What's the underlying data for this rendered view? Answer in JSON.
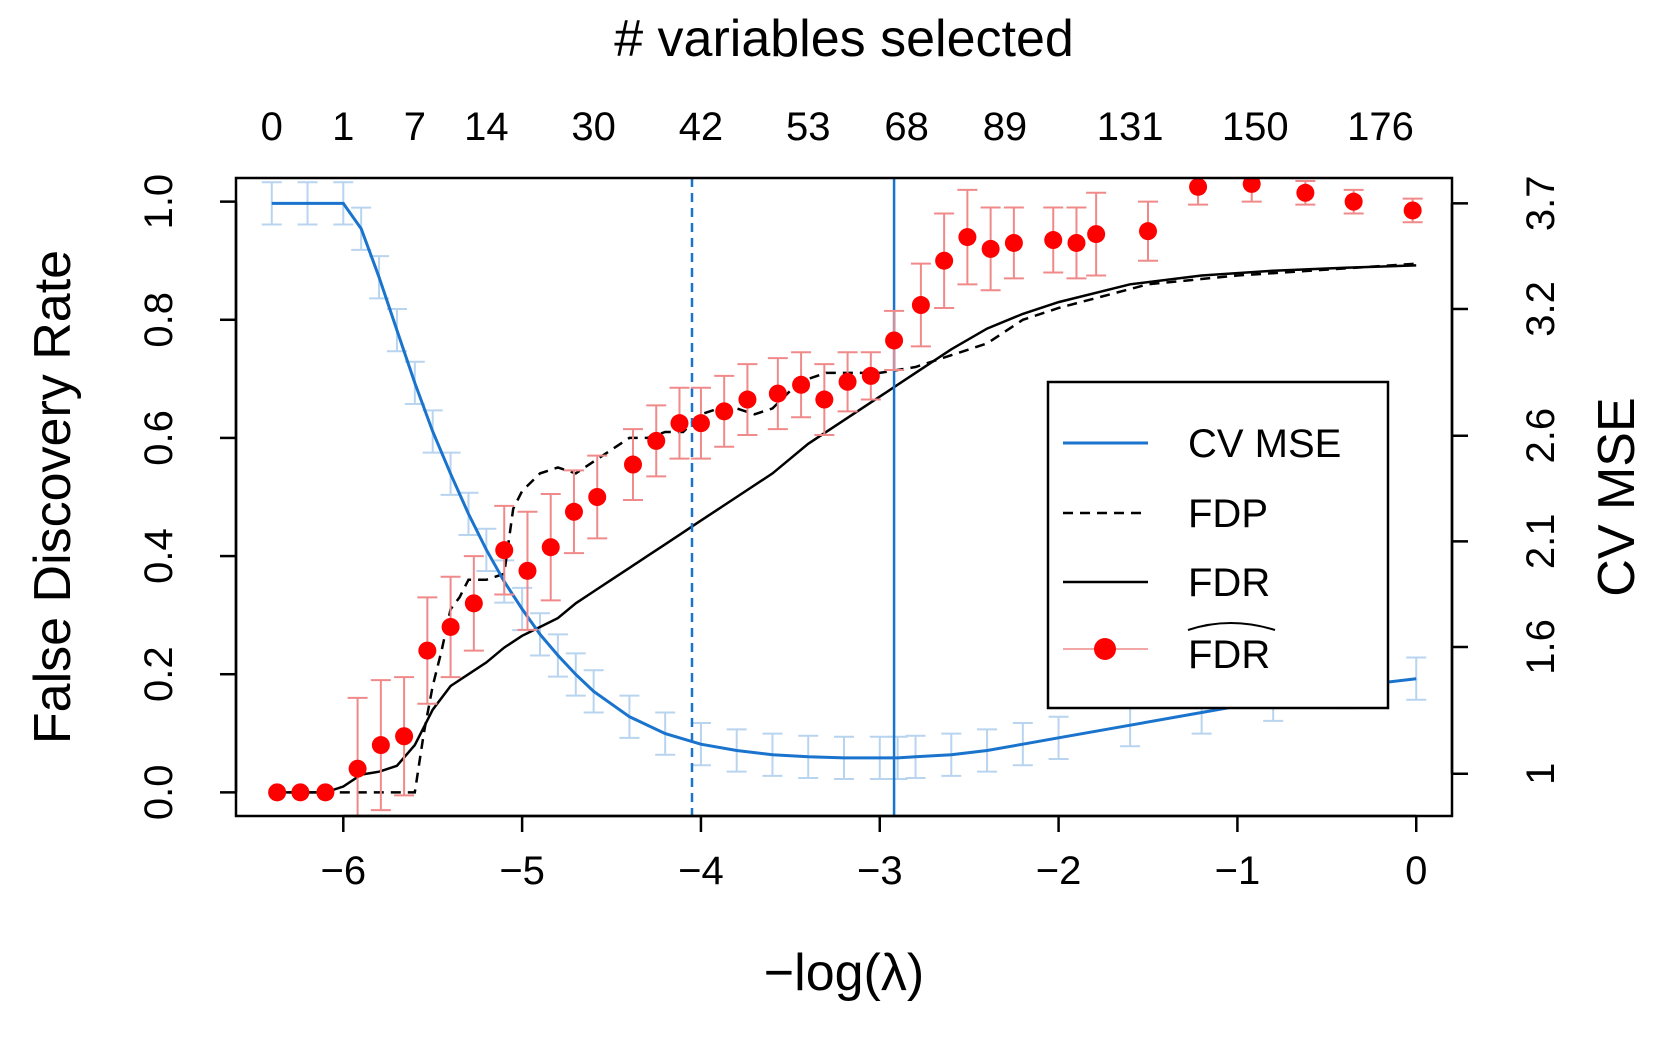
{
  "chart_data": {
    "type": "line",
    "title": "# variables selected",
    "xlabel": "−log(λ)",
    "ylabel": "False Discovery Rate",
    "y2label": "CV MSE",
    "xlim": [
      -6.6,
      0.2
    ],
    "ylim": [
      -0.04,
      1.04
    ],
    "y2lim": [
      0.8,
      3.82
    ],
    "x_ticks": [
      -6,
      -5,
      -4,
      -3,
      -2,
      -1,
      0
    ],
    "x_tick_labels": [
      "−6",
      "−5",
      "−4",
      "−3",
      "−2",
      "−1",
      "0"
    ],
    "y_ticks": [
      0.0,
      0.2,
      0.4,
      0.6,
      0.8,
      1.0
    ],
    "y_tick_labels": [
      "0.0",
      "0.2",
      "0.4",
      "0.6",
      "0.8",
      "1.0"
    ],
    "y2_ticks": [
      1.0,
      1.6,
      2.1,
      2.6,
      3.2,
      3.7
    ],
    "y2_tick_labels": [
      "1",
      "1.6",
      "2.1",
      "2.6",
      "3.2",
      "3.7"
    ],
    "top_ticks": [
      -6.4,
      -6.0,
      -5.6,
      -5.2,
      -4.6,
      -4.0,
      -3.4,
      -2.85,
      -2.3,
      -1.6,
      -0.9,
      -0.2
    ],
    "top_tick_labels": [
      "0",
      "1",
      "7",
      "14",
      "30",
      "42",
      "53",
      "68",
      "89",
      "131",
      "150",
      "176"
    ],
    "vlines": [
      {
        "x": -4.05,
        "style": "dashed",
        "color": "#1a73cc"
      },
      {
        "x": -2.92,
        "style": "solid",
        "color": "#1a73cc"
      }
    ],
    "grid": false,
    "legend_position": "right",
    "series": [
      {
        "name": "CV MSE",
        "color": "#1a73cc",
        "axis": "right",
        "x": [
          -6.4,
          -6.2,
          -6.0,
          -5.9,
          -5.8,
          -5.7,
          -5.6,
          -5.5,
          -5.4,
          -5.3,
          -5.2,
          -5.1,
          -5.0,
          -4.9,
          -4.8,
          -4.7,
          -4.6,
          -4.4,
          -4.2,
          -4.0,
          -3.8,
          -3.6,
          -3.4,
          -3.2,
          -3.0,
          -2.9,
          -2.8,
          -2.6,
          -2.4,
          -2.2,
          -2.0,
          -1.6,
          -1.2,
          -0.8,
          -0.4,
          0.0
        ],
        "y": [
          3.7,
          3.7,
          3.7,
          3.58,
          3.35,
          3.1,
          2.85,
          2.62,
          2.42,
          2.23,
          2.06,
          1.91,
          1.78,
          1.66,
          1.56,
          1.47,
          1.39,
          1.27,
          1.19,
          1.14,
          1.11,
          1.09,
          1.08,
          1.075,
          1.075,
          1.075,
          1.08,
          1.09,
          1.11,
          1.14,
          1.17,
          1.23,
          1.29,
          1.35,
          1.41,
          1.45
        ],
        "err": [
          0.1,
          0.1,
          0.1,
          0.1,
          0.1,
          0.1,
          0.1,
          0.1,
          0.1,
          0.1,
          0.1,
          0.1,
          0.1,
          0.1,
          0.1,
          0.1,
          0.1,
          0.1,
          0.1,
          0.1,
          0.1,
          0.1,
          0.1,
          0.1,
          0.1,
          0.1,
          0.1,
          0.1,
          0.1,
          0.1,
          0.1,
          0.1,
          0.1,
          0.1,
          0.1,
          0.1
        ]
      },
      {
        "name": "FDP",
        "color": "#000000",
        "axis": "left",
        "dashed": true,
        "x": [
          -6.4,
          -5.6,
          -5.55,
          -5.5,
          -5.45,
          -5.4,
          -5.35,
          -5.3,
          -5.2,
          -5.1,
          -5.05,
          -5.0,
          -4.9,
          -4.8,
          -4.7,
          -4.6,
          -4.5,
          -4.4,
          -4.3,
          -4.2,
          -4.1,
          -4.0,
          -3.9,
          -3.8,
          -3.7,
          -3.6,
          -3.5,
          -3.4,
          -3.3,
          -3.2,
          -3.1,
          -3.0,
          -2.8,
          -2.6,
          -2.4,
          -2.2,
          -2.0,
          -1.5,
          -1.0,
          -0.5,
          0.0
        ],
        "y": [
          0.0,
          0.0,
          0.1,
          0.18,
          0.24,
          0.31,
          0.33,
          0.36,
          0.36,
          0.37,
          0.48,
          0.51,
          0.54,
          0.55,
          0.54,
          0.56,
          0.58,
          0.6,
          0.6,
          0.61,
          0.61,
          0.64,
          0.65,
          0.65,
          0.64,
          0.65,
          0.68,
          0.7,
          0.71,
          0.71,
          0.71,
          0.71,
          0.72,
          0.74,
          0.76,
          0.8,
          0.82,
          0.86,
          0.875,
          0.885,
          0.895
        ]
      },
      {
        "name": "FDR",
        "color": "#000000",
        "axis": "left",
        "dashed": false,
        "x": [
          -6.4,
          -6.1,
          -6.0,
          -5.9,
          -5.8,
          -5.7,
          -5.6,
          -5.5,
          -5.4,
          -5.3,
          -5.2,
          -5.1,
          -5.0,
          -4.9,
          -4.8,
          -4.7,
          -4.6,
          -4.5,
          -4.4,
          -4.3,
          -4.2,
          -4.1,
          -4.0,
          -3.9,
          -3.8,
          -3.6,
          -3.4,
          -3.2,
          -3.0,
          -2.8,
          -2.6,
          -2.4,
          -2.2,
          -2.0,
          -1.6,
          -1.2,
          -0.8,
          -0.4,
          0.0
        ],
        "y": [
          0.0,
          0.0,
          0.01,
          0.03,
          0.035,
          0.045,
          0.08,
          0.14,
          0.18,
          0.2,
          0.22,
          0.245,
          0.265,
          0.28,
          0.295,
          0.32,
          0.34,
          0.36,
          0.38,
          0.4,
          0.42,
          0.44,
          0.46,
          0.48,
          0.5,
          0.54,
          0.59,
          0.63,
          0.67,
          0.71,
          0.75,
          0.785,
          0.81,
          0.83,
          0.86,
          0.875,
          0.883,
          0.888,
          0.892
        ]
      },
      {
        "name": "FDR",
        "name_decoration": "hat",
        "color": "#ff0000",
        "error_color": "#f08a8a",
        "axis": "left",
        "type": "scatter",
        "x": [
          -6.37,
          -6.24,
          -6.1,
          -5.92,
          -5.79,
          -5.66,
          -5.53,
          -5.4,
          -5.27,
          -5.1,
          -4.97,
          -4.84,
          -4.71,
          -4.58,
          -4.38,
          -4.25,
          -4.12,
          -4.0,
          -3.87,
          -3.74,
          -3.57,
          -3.44,
          -3.31,
          -3.18,
          -3.05,
          -2.92,
          -2.77,
          -2.64,
          -2.51,
          -2.38,
          -2.25,
          -2.03,
          -1.9,
          -1.79,
          -1.5,
          -1.22,
          -0.92,
          -0.62,
          -0.35,
          -0.02
        ],
        "y": [
          0.0,
          0.0,
          0.0,
          0.04,
          0.08,
          0.095,
          0.24,
          0.28,
          0.32,
          0.41,
          0.375,
          0.415,
          0.475,
          0.5,
          0.555,
          0.595,
          0.625,
          0.625,
          0.645,
          0.665,
          0.675,
          0.69,
          0.665,
          0.695,
          0.705,
          0.765,
          0.825,
          0.9,
          0.94,
          0.92,
          0.93,
          0.935,
          0.93,
          0.945,
          0.95,
          1.025,
          1.03,
          1.015,
          1.0,
          0.985
        ],
        "err": [
          0.0,
          0.0,
          0.0,
          0.12,
          0.11,
          0.1,
          0.09,
          0.085,
          0.08,
          0.075,
          0.1,
          0.09,
          0.07,
          0.07,
          0.06,
          0.06,
          0.06,
          0.06,
          0.06,
          0.06,
          0.06,
          0.055,
          0.06,
          0.05,
          0.04,
          0.05,
          0.07,
          0.08,
          0.08,
          0.07,
          0.06,
          0.055,
          0.06,
          0.07,
          0.05,
          0.03,
          0.03,
          0.02,
          0.02,
          0.02
        ]
      }
    ]
  }
}
